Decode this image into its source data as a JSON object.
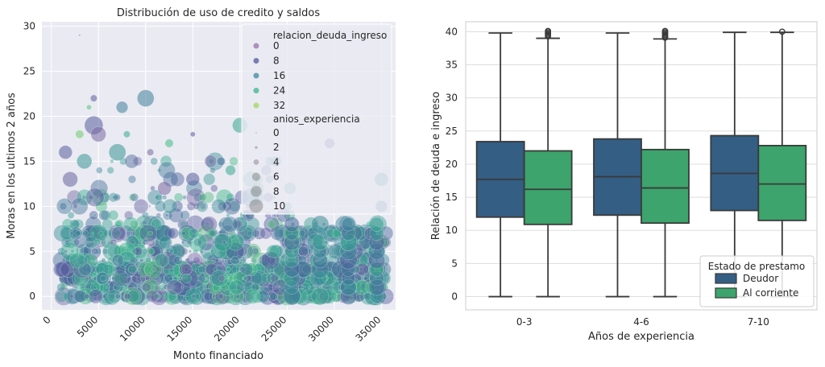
{
  "chart_data": [
    {
      "type": "scatter",
      "title": "Distribución de uso de credito y saldos",
      "xlabel": "Monto financiado",
      "ylabel": "Moras en los ultimos 2 años",
      "xlim": [
        -1000,
        36500
      ],
      "ylim": [
        -1.5,
        30.5
      ],
      "x_ticks": [
        0,
        5000,
        10000,
        15000,
        20000,
        25000,
        30000,
        35000
      ],
      "y_ticks": [
        0,
        5,
        10,
        15,
        20,
        25,
        30
      ],
      "grid": true,
      "legend": {
        "placement": "top-right",
        "hue_title": "relacion_deuda_ingreso",
        "hue_entries": [
          {
            "label": "0",
            "color": "#9b72aa"
          },
          {
            "label": "8",
            "color": "#4d5a9b"
          },
          {
            "label": "16",
            "color": "#3a8a98"
          },
          {
            "label": "24",
            "color": "#35b58b"
          },
          {
            "label": "32",
            "color": "#9fd85a"
          }
        ],
        "size_title": "anios_experiencia",
        "size_entries": [
          {
            "label": "0",
            "size": 0
          },
          {
            "label": "2",
            "size": 2
          },
          {
            "label": "4",
            "size": 4
          },
          {
            "label": "6",
            "size": 6
          },
          {
            "label": "8",
            "size": 8
          },
          {
            "label": "10",
            "size": 10
          }
        ]
      },
      "highlight_points": [
        {
          "x": 3000,
          "y": 29,
          "size": 0,
          "hue": 10
        },
        {
          "x": 10000,
          "y": 22,
          "size": 9,
          "hue": 16
        },
        {
          "x": 4500,
          "y": 22,
          "size": 3,
          "hue": 8
        },
        {
          "x": 4000,
          "y": 21,
          "size": 2,
          "hue": 30
        },
        {
          "x": 7500,
          "y": 21,
          "size": 6,
          "hue": 16
        },
        {
          "x": 20000,
          "y": 19,
          "size": 8,
          "hue": 24
        },
        {
          "x": 4500,
          "y": 19,
          "size": 10,
          "hue": 8
        },
        {
          "x": 5000,
          "y": 18,
          "size": 8,
          "hue": 4
        },
        {
          "x": 15000,
          "y": 18,
          "size": 2,
          "hue": 8
        },
        {
          "x": 3000,
          "y": 18,
          "size": 4,
          "hue": 32
        },
        {
          "x": 8000,
          "y": 18,
          "size": 3,
          "hue": 24
        },
        {
          "x": 12500,
          "y": 17,
          "size": 4,
          "hue": 28
        },
        {
          "x": 7000,
          "y": 16,
          "size": 9,
          "hue": 20
        },
        {
          "x": 1500,
          "y": 16,
          "size": 7,
          "hue": 8
        },
        {
          "x": 10500,
          "y": 16,
          "size": 3,
          "hue": 4
        },
        {
          "x": 3500,
          "y": 15,
          "size": 8,
          "hue": 20
        },
        {
          "x": 29500,
          "y": 17,
          "size": 5,
          "hue": 8
        },
        {
          "x": 18000,
          "y": 15,
          "size": 4,
          "hue": 12
        },
        {
          "x": 35000,
          "y": 13,
          "size": 7,
          "hue": 20
        },
        {
          "x": 35000,
          "y": 10,
          "size": 6,
          "hue": 16
        },
        {
          "x": 19000,
          "y": 14,
          "size": 5,
          "hue": 24
        },
        {
          "x": 12000,
          "y": 12,
          "size": 7,
          "hue": 4
        },
        {
          "x": 2000,
          "y": 13,
          "size": 8,
          "hue": 6
        },
        {
          "x": 15000,
          "y": 13,
          "size": 7,
          "hue": 8
        }
      ]
    },
    {
      "type": "box",
      "xlabel": "Años de experiencia",
      "ylabel": "Relación de deuda e ingreso",
      "categories": [
        "0-3",
        "4-6",
        "7-10"
      ],
      "ylim": [
        -2,
        41.5
      ],
      "y_ticks": [
        0,
        5,
        10,
        15,
        20,
        25,
        30,
        35,
        40
      ],
      "grid": true,
      "legend": {
        "placement": "lower-right",
        "title": "Estado de prestamo"
      },
      "series": [
        {
          "name": "Deudor",
          "color": "#345e84",
          "boxes": [
            {
              "min": 0,
              "q1": 12,
              "median": 17.7,
              "q3": 23.4,
              "max": 39.8,
              "outliers": []
            },
            {
              "min": 0,
              "q1": 12.3,
              "median": 18.1,
              "q3": 23.8,
              "max": 39.8,
              "outliers": []
            },
            {
              "min": 0,
              "q1": 13,
              "median": 18.6,
              "q3": 24.3,
              "max": 39.9,
              "outliers": []
            }
          ]
        },
        {
          "name": "Al corriente",
          "color": "#3ca46c",
          "boxes": [
            {
              "min": 0,
              "q1": 10.9,
              "median": 16.2,
              "q3": 22,
              "max": 39,
              "outliers": [
                39.3,
                39.5,
                39.7,
                39.9,
                40.1
              ]
            },
            {
              "min": 0,
              "q1": 11.1,
              "median": 16.4,
              "q3": 22.2,
              "max": 38.9,
              "outliers": [
                39.1,
                39.3,
                39.5,
                39.7,
                39.9,
                40.1
              ]
            },
            {
              "min": 0,
              "q1": 11.5,
              "median": 17,
              "q3": 22.8,
              "max": 39.9,
              "outliers": [
                40
              ]
            }
          ]
        }
      ]
    }
  ]
}
